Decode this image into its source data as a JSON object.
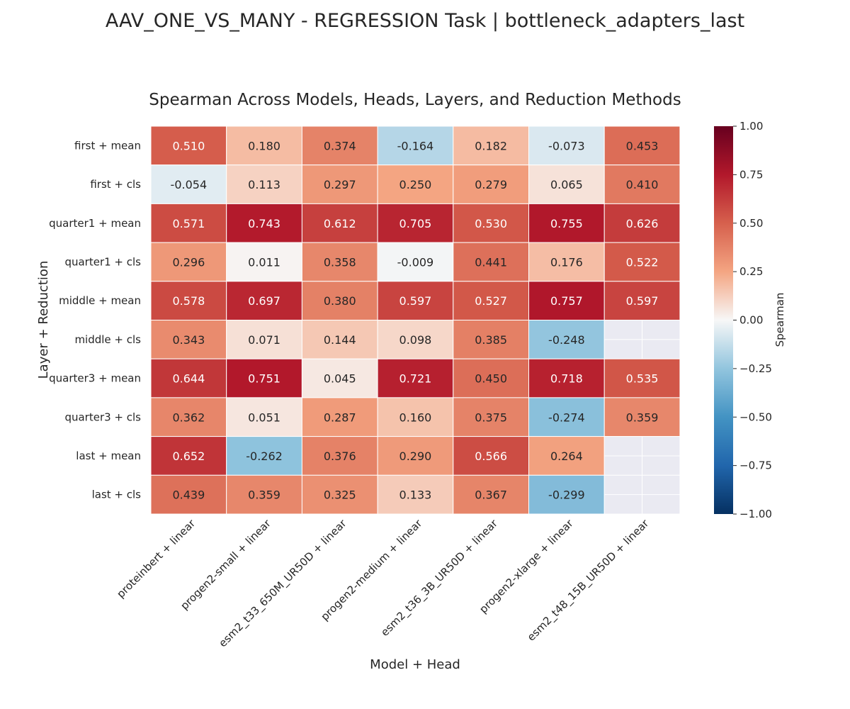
{
  "suptitle": "AAV_ONE_VS_MANY - REGRESSION Task | bottleneck_adapters_last",
  "chart_data": {
    "type": "heatmap",
    "title": "Spearman Across Models, Heads, Layers, and Reduction Methods",
    "xlabel": "Model + Head",
    "ylabel": "Layer + Reduction",
    "columns": [
      "proteinbert + linear",
      "progen2-small + linear",
      "esm2_t33_650M_UR50D + linear",
      "progen2-medium + linear",
      "esm2_t36_3B_UR50D + linear",
      "progen2-xlarge + linear",
      "esm2_t48_15B_UR50D + linear"
    ],
    "rows": [
      "first + mean",
      "first + cls",
      "quarter1 + mean",
      "quarter1 + cls",
      "middle + mean",
      "middle + cls",
      "quarter3 + mean",
      "quarter3 + cls",
      "last + mean",
      "last + cls"
    ],
    "values": [
      [
        0.51,
        0.18,
        0.374,
        -0.164,
        0.182,
        -0.073,
        0.453
      ],
      [
        -0.054,
        0.113,
        0.297,
        0.25,
        0.279,
        0.065,
        0.41
      ],
      [
        0.571,
        0.743,
        0.612,
        0.705,
        0.53,
        0.755,
        0.626
      ],
      [
        0.296,
        0.011,
        0.358,
        -0.009,
        0.441,
        0.176,
        0.522
      ],
      [
        0.578,
        0.697,
        0.38,
        0.597,
        0.527,
        0.757,
        0.597
      ],
      [
        0.343,
        0.071,
        0.144,
        0.098,
        0.385,
        -0.248,
        null
      ],
      [
        0.644,
        0.751,
        0.045,
        0.721,
        0.45,
        0.718,
        0.535
      ],
      [
        0.362,
        0.051,
        0.287,
        0.16,
        0.375,
        -0.274,
        0.359
      ],
      [
        0.652,
        -0.262,
        0.376,
        0.29,
        0.566,
        0.264,
        null
      ],
      [
        0.439,
        0.359,
        0.325,
        0.133,
        0.367,
        -0.299,
        null
      ]
    ],
    "cell_labels": [
      [
        "0.510",
        "0.180",
        "0.374",
        "-0.164",
        "0.182",
        "-0.073",
        "0.453"
      ],
      [
        "-0.054",
        "0.113",
        "0.297",
        "0.250",
        "0.279",
        "0.065",
        "0.410"
      ],
      [
        "0.571",
        "0.743",
        "0.612",
        "0.705",
        "0.530",
        "0.755",
        "0.626"
      ],
      [
        "0.296",
        "0.011",
        "0.358",
        "-0.009",
        "0.441",
        "0.176",
        "0.522"
      ],
      [
        "0.578",
        "0.697",
        "0.380",
        "0.597",
        "0.527",
        "0.757",
        "0.597"
      ],
      [
        "0.343",
        "0.071",
        "0.144",
        "0.098",
        "0.385",
        "-0.248",
        ""
      ],
      [
        "0.644",
        "0.751",
        "0.045",
        "0.721",
        "0.450",
        "0.718",
        "0.535"
      ],
      [
        "0.362",
        "0.051",
        "0.287",
        "0.160",
        "0.375",
        "-0.274",
        "0.359"
      ],
      [
        "0.652",
        "-0.262",
        "0.376",
        "0.290",
        "0.566",
        "0.264",
        ""
      ],
      [
        "0.439",
        "0.359",
        "0.325",
        "0.133",
        "0.367",
        "-0.299",
        ""
      ]
    ],
    "colorbar": {
      "label": "Spearman",
      "range": [
        -1.0,
        1.0
      ],
      "ticks": [
        1.0,
        0.75,
        0.5,
        0.25,
        0.0,
        -0.25,
        -0.5,
        -0.75,
        -1.0
      ],
      "tick_labels": [
        "1.00",
        "0.75",
        "0.50",
        "0.25",
        "0.00",
        "−0.25",
        "−0.50",
        "−0.75",
        "−1.00"
      ],
      "colormap": "RdBu_r"
    },
    "missing_cell_color": "#eaeaf2"
  }
}
